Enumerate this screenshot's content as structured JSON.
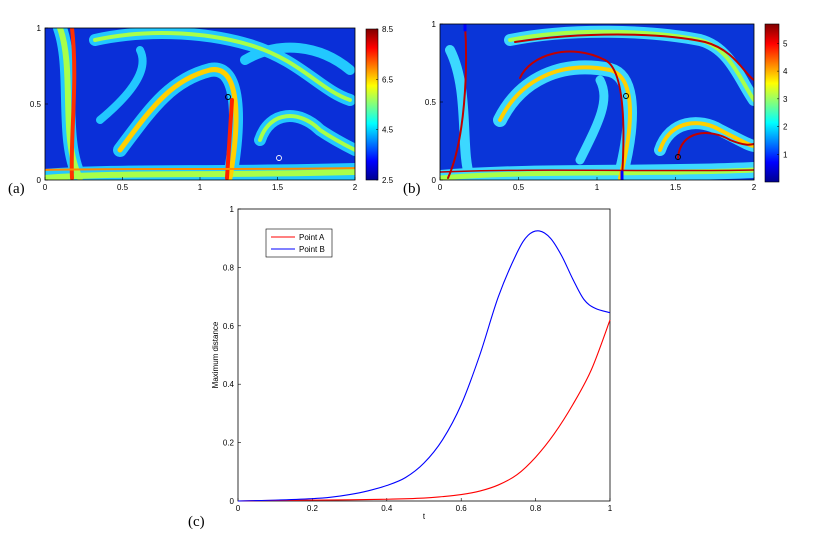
{
  "colors": {
    "series_a": "#ff0000",
    "series_b": "#0000ff",
    "field_low": "#00008f",
    "field_mid": "#0077ff",
    "field_high": "#b00000"
  },
  "chart_data": [
    {
      "type": "heatmap",
      "panel_label": "(a)",
      "xlim": [
        0,
        2
      ],
      "ylim": [
        0,
        1
      ],
      "x_ticks": [
        "0",
        "0.5",
        "1",
        "1.5",
        "2"
      ],
      "y_ticks": [
        "0",
        "0.5",
        "1"
      ],
      "colorbar": {
        "range": [
          2.5,
          8.5
        ],
        "ticks": [
          "2.5",
          "4.5",
          "6.5",
          "8.5"
        ]
      },
      "markers": [
        {
          "x": 1.18,
          "y": 0.53
        },
        {
          "x": 1.5,
          "y": 0.14
        }
      ]
    },
    {
      "type": "heatmap",
      "panel_label": "(b)",
      "xlim": [
        0,
        2
      ],
      "ylim": [
        0,
        1
      ],
      "x_ticks": [
        "0",
        "0.5",
        "1",
        "1.5",
        "2"
      ],
      "y_ticks": [
        "0",
        "0.5",
        "1"
      ],
      "colorbar": {
        "range": [
          0,
          5.7
        ],
        "ticks": [
          "1",
          "2",
          "3",
          "4",
          "5"
        ]
      },
      "markers": [
        {
          "x": 1.18,
          "y": 0.55
        },
        {
          "x": 1.5,
          "y": 0.15
        }
      ]
    },
    {
      "type": "line",
      "panel_label": "(c)",
      "xlabel": "t",
      "ylabel": "Maximum distance",
      "xlim": [
        0,
        1
      ],
      "ylim": [
        0,
        1
      ],
      "x_ticks": [
        "0",
        "0.2",
        "0.4",
        "0.6",
        "0.8",
        "1"
      ],
      "y_ticks": [
        "0",
        "0.2",
        "0.4",
        "0.6",
        "0.8",
        "1"
      ],
      "legend_position": "top-left",
      "series": [
        {
          "name": "Point A",
          "x": [
            0,
            0.1,
            0.2,
            0.3,
            0.4,
            0.5,
            0.55,
            0.6,
            0.65,
            0.7,
            0.75,
            0.8,
            0.85,
            0.9,
            0.95,
            1.0
          ],
          "y": [
            0,
            0.002,
            0.003,
            0.004,
            0.006,
            0.01,
            0.015,
            0.022,
            0.034,
            0.055,
            0.09,
            0.15,
            0.23,
            0.33,
            0.45,
            0.62
          ]
        },
        {
          "name": "Point B",
          "x": [
            0,
            0.1,
            0.2,
            0.25,
            0.3,
            0.35,
            0.4,
            0.45,
            0.5,
            0.55,
            0.6,
            0.65,
            0.7,
            0.75,
            0.78,
            0.81,
            0.84,
            0.87,
            0.9,
            0.93,
            0.96,
            1.0
          ],
          "y": [
            0,
            0.003,
            0.008,
            0.013,
            0.022,
            0.035,
            0.053,
            0.08,
            0.13,
            0.21,
            0.33,
            0.5,
            0.7,
            0.85,
            0.91,
            0.925,
            0.9,
            0.84,
            0.76,
            0.69,
            0.66,
            0.645
          ]
        }
      ]
    }
  ]
}
